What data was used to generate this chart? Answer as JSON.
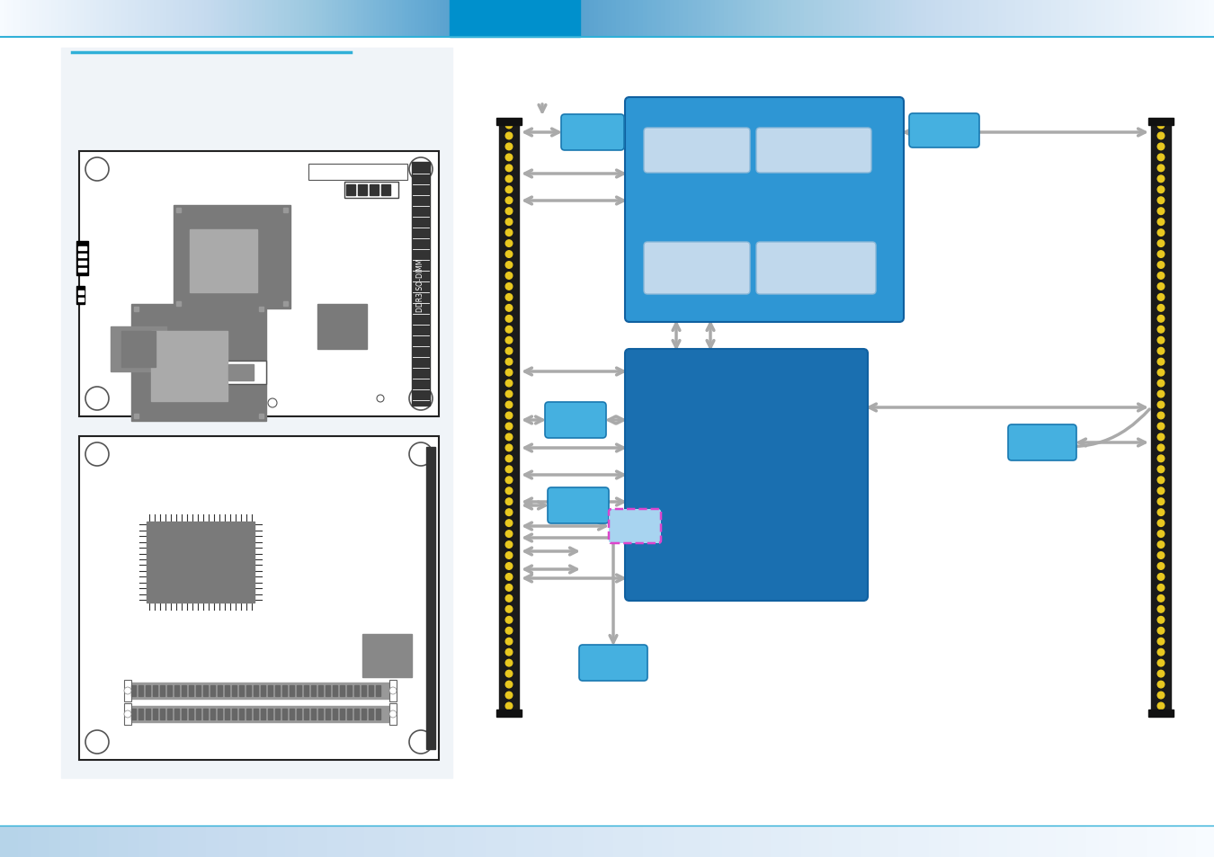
{
  "bg_color": "#ffffff",
  "header_blue": "#0090cc",
  "header_light": "#b8d8ee",
  "board_edge": "#222222",
  "chip_gray": "#888888",
  "chip_light": "#aaaaaa",
  "blue_dark": "#1a6fb0",
  "blue_mid": "#2e96d4",
  "blue_light": "#55b8e8",
  "blue_tiny": "#60c0ec",
  "arrow_gray": "#aaaaaa",
  "dashed_pink": "#dd44cc",
  "connector_yellow": "#e8c820",
  "connector_black": "#1a1a1a",
  "inner_box": "#c0d8ec",
  "white": "#ffffff",
  "cyan_line": "#30b0d8"
}
